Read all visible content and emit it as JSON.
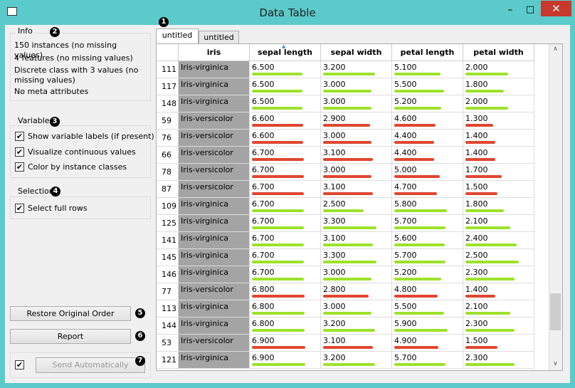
{
  "window": {
    "title": "Data Table"
  },
  "tabs": [
    "untitled",
    "untitled"
  ],
  "info": {
    "title": "Info",
    "lines": [
      "150 instances (no missing values)",
      "4 features (no missing values)",
      "Discrete class with 3 values (no missing values)",
      "No meta attributes"
    ]
  },
  "variables": {
    "title": "Variables",
    "options": [
      {
        "label": "Show variable labels (if present)",
        "checked": true
      },
      {
        "label": "Visualize continuous values",
        "checked": true
      },
      {
        "label": "Color by instance classes",
        "checked": true
      }
    ]
  },
  "selection": {
    "title": "Selection",
    "options": [
      {
        "label": "Select full rows",
        "checked": true
      }
    ]
  },
  "buttons": {
    "restore": "Restore Original Order",
    "report": "Report",
    "send": "Send Automatically",
    "auto_send_checked": true
  },
  "callouts": [
    1,
    2,
    3,
    4,
    5,
    6,
    7
  ],
  "table": {
    "columns": [
      "iris",
      "sepal length",
      "sepal width",
      "petal length",
      "petal width"
    ],
    "class_colors": {
      "Iris-virginica": "#9de22b",
      "Iris-versicolor": "#e0462f"
    },
    "rows": [
      [
        "111",
        "Iris-virginica",
        "6.500",
        "3.200",
        "5.100",
        "2.000"
      ],
      [
        "117",
        "Iris-virginica",
        "6.500",
        "3.000",
        "5.500",
        "1.800"
      ],
      [
        "148",
        "Iris-virginica",
        "6.500",
        "3.000",
        "5.200",
        "2.000"
      ],
      [
        "59",
        "Iris-versicolor",
        "6.600",
        "2.900",
        "4.600",
        "1.300"
      ],
      [
        "76",
        "Iris-versicolor",
        "6.600",
        "3.000",
        "4.400",
        "1.400"
      ],
      [
        "66",
        "Iris-versicolor",
        "6.700",
        "3.100",
        "4.400",
        "1.400"
      ],
      [
        "78",
        "Iris-versicolor",
        "6.700",
        "3.000",
        "5.000",
        "1.700"
      ],
      [
        "87",
        "Iris-versicolor",
        "6.700",
        "3.100",
        "4.700",
        "1.500"
      ],
      [
        "109",
        "Iris-virginica",
        "6.700",
        "2.500",
        "5.800",
        "1.800"
      ],
      [
        "125",
        "Iris-virginica",
        "6.700",
        "3.300",
        "5.700",
        "2.100"
      ],
      [
        "141",
        "Iris-virginica",
        "6.700",
        "3.100",
        "5.600",
        "2.400"
      ],
      [
        "145",
        "Iris-virginica",
        "6.700",
        "3.300",
        "5.700",
        "2.500"
      ],
      [
        "146",
        "Iris-virginica",
        "6.700",
        "3.000",
        "5.200",
        "2.300"
      ],
      [
        "77",
        "Iris-versicolor",
        "6.800",
        "2.800",
        "4.800",
        "1.400"
      ],
      [
        "113",
        "Iris-virginica",
        "6.800",
        "3.000",
        "5.500",
        "2.100"
      ],
      [
        "144",
        "Iris-virginica",
        "6.800",
        "3.200",
        "5.900",
        "2.300"
      ],
      [
        "53",
        "Iris-versicolor",
        "6.900",
        "3.100",
        "4.900",
        "1.500"
      ],
      [
        "121",
        "Iris-virginica",
        "6.900",
        "3.200",
        "5.700",
        "2.300"
      ]
    ]
  }
}
